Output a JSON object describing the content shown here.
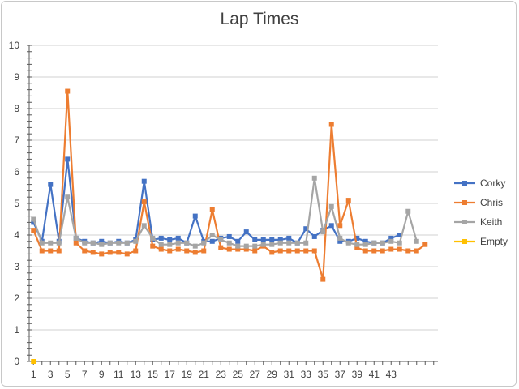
{
  "chart_data": {
    "type": "line",
    "title": "Lap Times",
    "xlabel": "",
    "ylabel": "",
    "ylim": [
      0,
      10
    ],
    "yticks": [
      0,
      1,
      2,
      3,
      4,
      5,
      6,
      7,
      8,
      9,
      10
    ],
    "x": [
      1,
      2,
      3,
      4,
      5,
      6,
      7,
      8,
      9,
      10,
      11,
      12,
      13,
      14,
      15,
      16,
      17,
      18,
      19,
      20,
      21,
      22,
      23,
      24,
      25,
      26,
      27,
      28,
      29,
      30,
      31,
      32,
      33,
      34,
      35,
      36,
      37,
      38,
      39,
      40,
      41,
      42,
      43,
      44,
      45,
      46,
      47,
      48
    ],
    "xtick_labels": [
      "1",
      "3",
      "5",
      "7",
      "9",
      "11",
      "13",
      "15",
      "17",
      "19",
      "21",
      "23",
      "25",
      "27",
      "29",
      "31",
      "33",
      "35",
      "37",
      "39",
      "41",
      "43"
    ],
    "grid": "horizontal",
    "legend_position": "right",
    "series": [
      {
        "name": "Corky",
        "color": "#4472C4",
        "values": [
          4.4,
          3.8,
          5.6,
          3.8,
          6.4,
          3.9,
          3.8,
          3.75,
          3.8,
          3.75,
          3.8,
          3.75,
          3.85,
          5.7,
          3.85,
          3.9,
          3.85,
          3.9,
          3.75,
          4.6,
          3.8,
          3.8,
          3.9,
          3.95,
          3.8,
          4.1,
          3.85,
          3.85,
          3.85,
          3.85,
          3.9,
          3.75,
          4.2,
          3.95,
          4.15,
          4.3,
          3.8,
          3.8,
          3.9,
          3.8,
          3.75,
          3.75,
          3.9,
          4.0,
          null,
          null,
          null,
          null
        ]
      },
      {
        "name": "Chris",
        "color": "#ED7D31",
        "values": [
          4.15,
          3.5,
          3.5,
          3.5,
          8.55,
          3.75,
          3.5,
          3.45,
          3.4,
          3.45,
          3.45,
          3.4,
          3.5,
          5.05,
          3.65,
          3.55,
          3.5,
          3.55,
          3.5,
          3.45,
          3.5,
          4.8,
          3.6,
          3.55,
          3.55,
          3.55,
          3.5,
          3.65,
          3.45,
          3.5,
          3.5,
          3.5,
          3.5,
          3.5,
          2.6,
          7.5,
          4.3,
          5.1,
          3.6,
          3.5,
          3.5,
          3.5,
          3.55,
          3.55,
          3.5,
          3.5,
          3.7,
          null
        ]
      },
      {
        "name": "Keith",
        "color": "#A5A5A5",
        "values": [
          4.5,
          3.75,
          3.75,
          3.75,
          5.2,
          3.9,
          3.75,
          3.75,
          3.7,
          3.75,
          3.75,
          3.75,
          3.8,
          4.3,
          3.9,
          3.7,
          3.7,
          3.75,
          3.75,
          3.65,
          3.75,
          4.0,
          3.85,
          3.75,
          3.65,
          3.65,
          3.65,
          3.7,
          3.7,
          3.75,
          3.75,
          3.75,
          3.75,
          5.8,
          4.1,
          4.9,
          3.9,
          3.75,
          3.7,
          3.7,
          3.75,
          3.75,
          3.8,
          3.75,
          4.75,
          3.8,
          null,
          null
        ]
      },
      {
        "name": "Empty",
        "color": "#FFC000",
        "values": [
          0,
          null,
          null,
          null,
          null,
          null,
          null,
          null,
          null,
          null,
          null,
          null,
          null,
          null,
          null,
          null,
          null,
          null,
          null,
          null,
          null,
          null,
          null,
          null,
          null,
          null,
          null,
          null,
          null,
          null,
          null,
          null,
          null,
          null,
          null,
          null,
          null,
          null,
          null,
          null,
          null,
          null,
          null,
          null,
          null,
          null,
          null,
          null
        ]
      }
    ]
  }
}
